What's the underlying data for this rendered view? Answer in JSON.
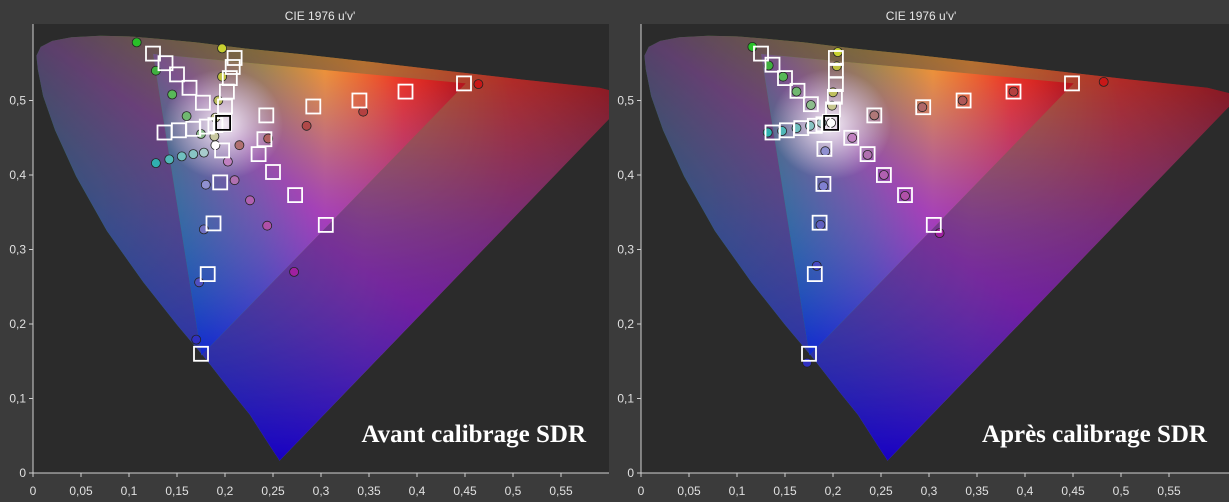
{
  "chart_data": [
    {
      "type": "scatter",
      "title": "CIE 1976 u'v'",
      "annotation": "Avant calibrage SDR",
      "xlim": [
        0,
        0.6
      ],
      "ylim": [
        0,
        0.6
      ],
      "x_ticks": [
        "0",
        "0,05",
        "0,1",
        "0,15",
        "0,2",
        "0,25",
        "0,3",
        "0,35",
        "0,4",
        "0,45",
        "0,5",
        "0,55"
      ],
      "y_ticks": [
        "0",
        "0,1",
        "0,2",
        "0,3",
        "0,4",
        "0,5"
      ],
      "targets": [
        [
          0.449,
          0.523
        ],
        [
          0.388,
          0.512
        ],
        [
          0.34,
          0.5
        ],
        [
          0.292,
          0.492
        ],
        [
          0.243,
          0.48
        ],
        [
          0.125,
          0.563
        ],
        [
          0.138,
          0.55
        ],
        [
          0.15,
          0.535
        ],
        [
          0.163,
          0.517
        ],
        [
          0.177,
          0.497
        ],
        [
          0.21,
          0.557
        ],
        [
          0.208,
          0.545
        ],
        [
          0.205,
          0.53
        ],
        [
          0.202,
          0.512
        ],
        [
          0.2,
          0.492
        ],
        [
          0.137,
          0.457
        ],
        [
          0.152,
          0.46
        ],
        [
          0.167,
          0.462
        ],
        [
          0.181,
          0.465
        ],
        [
          0.19,
          0.467
        ],
        [
          0.241,
          0.448
        ],
        [
          0.235,
          0.428
        ],
        [
          0.25,
          0.404
        ],
        [
          0.273,
          0.373
        ],
        [
          0.305,
          0.333
        ],
        [
          0.197,
          0.433
        ],
        [
          0.195,
          0.39
        ],
        [
          0.188,
          0.335
        ],
        [
          0.182,
          0.267
        ],
        [
          0.175,
          0.16
        ],
        [
          0.198,
          0.47
        ]
      ],
      "measured": [
        [
          0.464,
          0.522,
          "#c81818"
        ],
        [
          0.344,
          0.485,
          "#b44040"
        ],
        [
          0.285,
          0.466,
          "#b04848"
        ],
        [
          0.245,
          0.449,
          "#b06060"
        ],
        [
          0.215,
          0.44,
          "#b07070"
        ],
        [
          0.108,
          0.578,
          "#28c028"
        ],
        [
          0.128,
          0.54,
          "#40b040"
        ],
        [
          0.145,
          0.508,
          "#58b858"
        ],
        [
          0.16,
          0.479,
          "#70b870"
        ],
        [
          0.175,
          0.455,
          "#8cbc8c"
        ],
        [
          0.197,
          0.57,
          "#c8d030"
        ],
        [
          0.197,
          0.532,
          "#c0c040"
        ],
        [
          0.193,
          0.5,
          "#c0c060"
        ],
        [
          0.19,
          0.477,
          "#c8c890"
        ],
        [
          0.128,
          0.416,
          "#30b0b0"
        ],
        [
          0.142,
          0.421,
          "#50b8b8"
        ],
        [
          0.155,
          0.425,
          "#70c0c0"
        ],
        [
          0.167,
          0.428,
          "#88c4c4"
        ],
        [
          0.178,
          0.43,
          "#a8cccc"
        ],
        [
          0.203,
          0.418,
          "#c080c0"
        ],
        [
          0.21,
          0.393,
          "#b070b0"
        ],
        [
          0.226,
          0.366,
          "#b060b0"
        ],
        [
          0.244,
          0.332,
          "#b050a8"
        ],
        [
          0.272,
          0.27,
          "#a020a0"
        ],
        [
          0.18,
          0.387,
          "#9090d0"
        ],
        [
          0.178,
          0.327,
          "#7070c0"
        ],
        [
          0.173,
          0.256,
          "#5050c0"
        ],
        [
          0.17,
          0.179,
          "#3030c0"
        ],
        [
          0.19,
          0.44,
          "#ffffff"
        ],
        [
          0.189,
          0.452,
          "#c8c8a0"
        ]
      ]
    },
    {
      "type": "scatter",
      "title": "CIE 1976 u'v'",
      "annotation": "Après calibrage SDR",
      "xlim": [
        0,
        0.6
      ],
      "ylim": [
        0,
        0.6
      ],
      "x_ticks": [
        "0",
        "0,05",
        "0,1",
        "0,15",
        "0,2",
        "0,25",
        "0,3",
        "0,35",
        "0,4",
        "0,45",
        "0,5",
        "0,55"
      ],
      "y_ticks": [
        "0",
        "0,1",
        "0,2",
        "0,3",
        "0,4",
        "0,5"
      ],
      "targets": [
        [
          0.449,
          0.523
        ],
        [
          0.388,
          0.512
        ],
        [
          0.336,
          0.5
        ],
        [
          0.294,
          0.491
        ],
        [
          0.243,
          0.48
        ],
        [
          0.125,
          0.563
        ],
        [
          0.137,
          0.548
        ],
        [
          0.15,
          0.53
        ],
        [
          0.163,
          0.513
        ],
        [
          0.177,
          0.495
        ],
        [
          0.203,
          0.557
        ],
        [
          0.203,
          0.54
        ],
        [
          0.203,
          0.522
        ],
        [
          0.202,
          0.505
        ],
        [
          0.2,
          0.488
        ],
        [
          0.137,
          0.457
        ],
        [
          0.152,
          0.46
        ],
        [
          0.167,
          0.463
        ],
        [
          0.181,
          0.466
        ],
        [
          0.19,
          0.468
        ],
        [
          0.236,
          0.428
        ],
        [
          0.253,
          0.4
        ],
        [
          0.275,
          0.373
        ],
        [
          0.305,
          0.333
        ],
        [
          0.219,
          0.45
        ],
        [
          0.191,
          0.435
        ],
        [
          0.19,
          0.388
        ],
        [
          0.186,
          0.336
        ],
        [
          0.181,
          0.267
        ],
        [
          0.175,
          0.16
        ],
        [
          0.198,
          0.47
        ]
      ],
      "measured": [
        [
          0.482,
          0.525,
          "#c81818"
        ],
        [
          0.388,
          0.512,
          "#b44040"
        ],
        [
          0.335,
          0.5,
          "#b05858"
        ],
        [
          0.293,
          0.491,
          "#b06868"
        ],
        [
          0.243,
          0.48,
          "#b07878"
        ],
        [
          0.116,
          0.572,
          "#28c028"
        ],
        [
          0.133,
          0.547,
          "#40b040"
        ],
        [
          0.148,
          0.532,
          "#58b858"
        ],
        [
          0.162,
          0.512,
          "#70b870"
        ],
        [
          0.177,
          0.494,
          "#8cbc8c"
        ],
        [
          0.205,
          0.565,
          "#c8d030"
        ],
        [
          0.204,
          0.546,
          "#c0c040"
        ],
        [
          0.2,
          0.511,
          "#c0c060"
        ],
        [
          0.199,
          0.493,
          "#c8c890"
        ],
        [
          0.132,
          0.457,
          "#30b0b0"
        ],
        [
          0.147,
          0.459,
          "#50b8b8"
        ],
        [
          0.162,
          0.463,
          "#70c0c0"
        ],
        [
          0.176,
          0.466,
          "#88c4c4"
        ],
        [
          0.188,
          0.47,
          "#a8cccc"
        ],
        [
          0.22,
          0.45,
          "#c080c0"
        ],
        [
          0.236,
          0.427,
          "#b070b0"
        ],
        [
          0.253,
          0.4,
          "#b060b0"
        ],
        [
          0.275,
          0.372,
          "#b050a8"
        ],
        [
          0.311,
          0.322,
          "#a020a0"
        ],
        [
          0.192,
          0.432,
          "#9090d0"
        ],
        [
          0.19,
          0.385,
          "#8080d0"
        ],
        [
          0.187,
          0.333,
          "#6060c0"
        ],
        [
          0.183,
          0.278,
          "#4848c0"
        ],
        [
          0.173,
          0.148,
          "#3030c0"
        ],
        [
          0.198,
          0.47,
          "#ffffff"
        ]
      ]
    }
  ]
}
